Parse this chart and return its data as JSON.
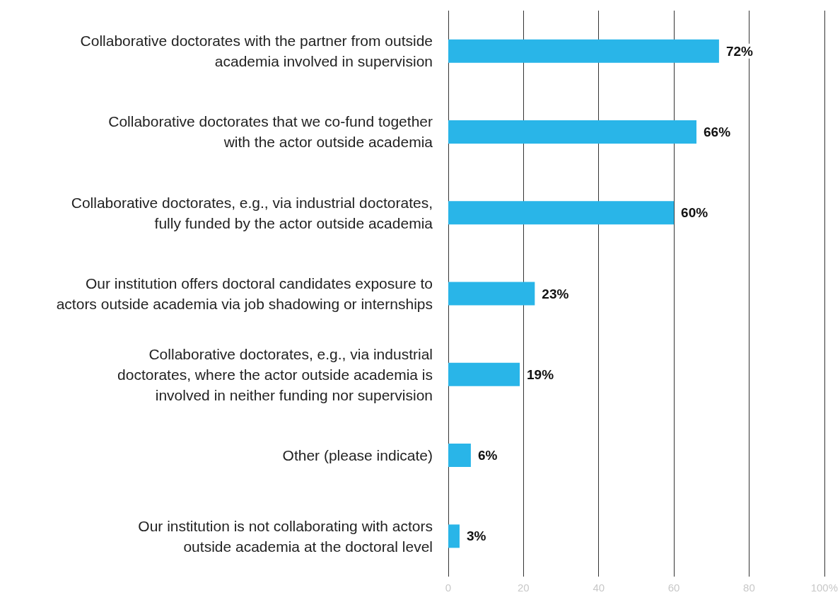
{
  "chart_data": {
    "type": "bar",
    "orientation": "horizontal",
    "categories": [
      "Collaborative doctorates with the partner from outside\nacademia involved in supervision",
      "Collaborative doctorates that we co-fund together\nwith the actor outside academia",
      "Collaborative doctorates, e.g., via industrial doctorates,\nfully funded by the actor outside academia",
      "Our institution offers doctoral candidates exposure to\nactors outside academia via job shadowing or internships",
      "Collaborative doctorates, e.g., via industrial\ndoctorates, where the actor outside academia is\ninvolved in neither funding nor supervision",
      "Other (please indicate)",
      "Our institution is not collaborating with actors\noutside academia at the doctoral level"
    ],
    "values": [
      72,
      66,
      60,
      23,
      19,
      6,
      3
    ],
    "value_labels": [
      "72%",
      "66%",
      "60%",
      "23%",
      "19%",
      "6%",
      "3%"
    ],
    "color": "#29b5e8",
    "xlim": [
      0,
      100
    ],
    "xticks": [
      0,
      20,
      40,
      60,
      80,
      {
        "value": 100,
        "label": "100%"
      }
    ],
    "grid": "x"
  }
}
